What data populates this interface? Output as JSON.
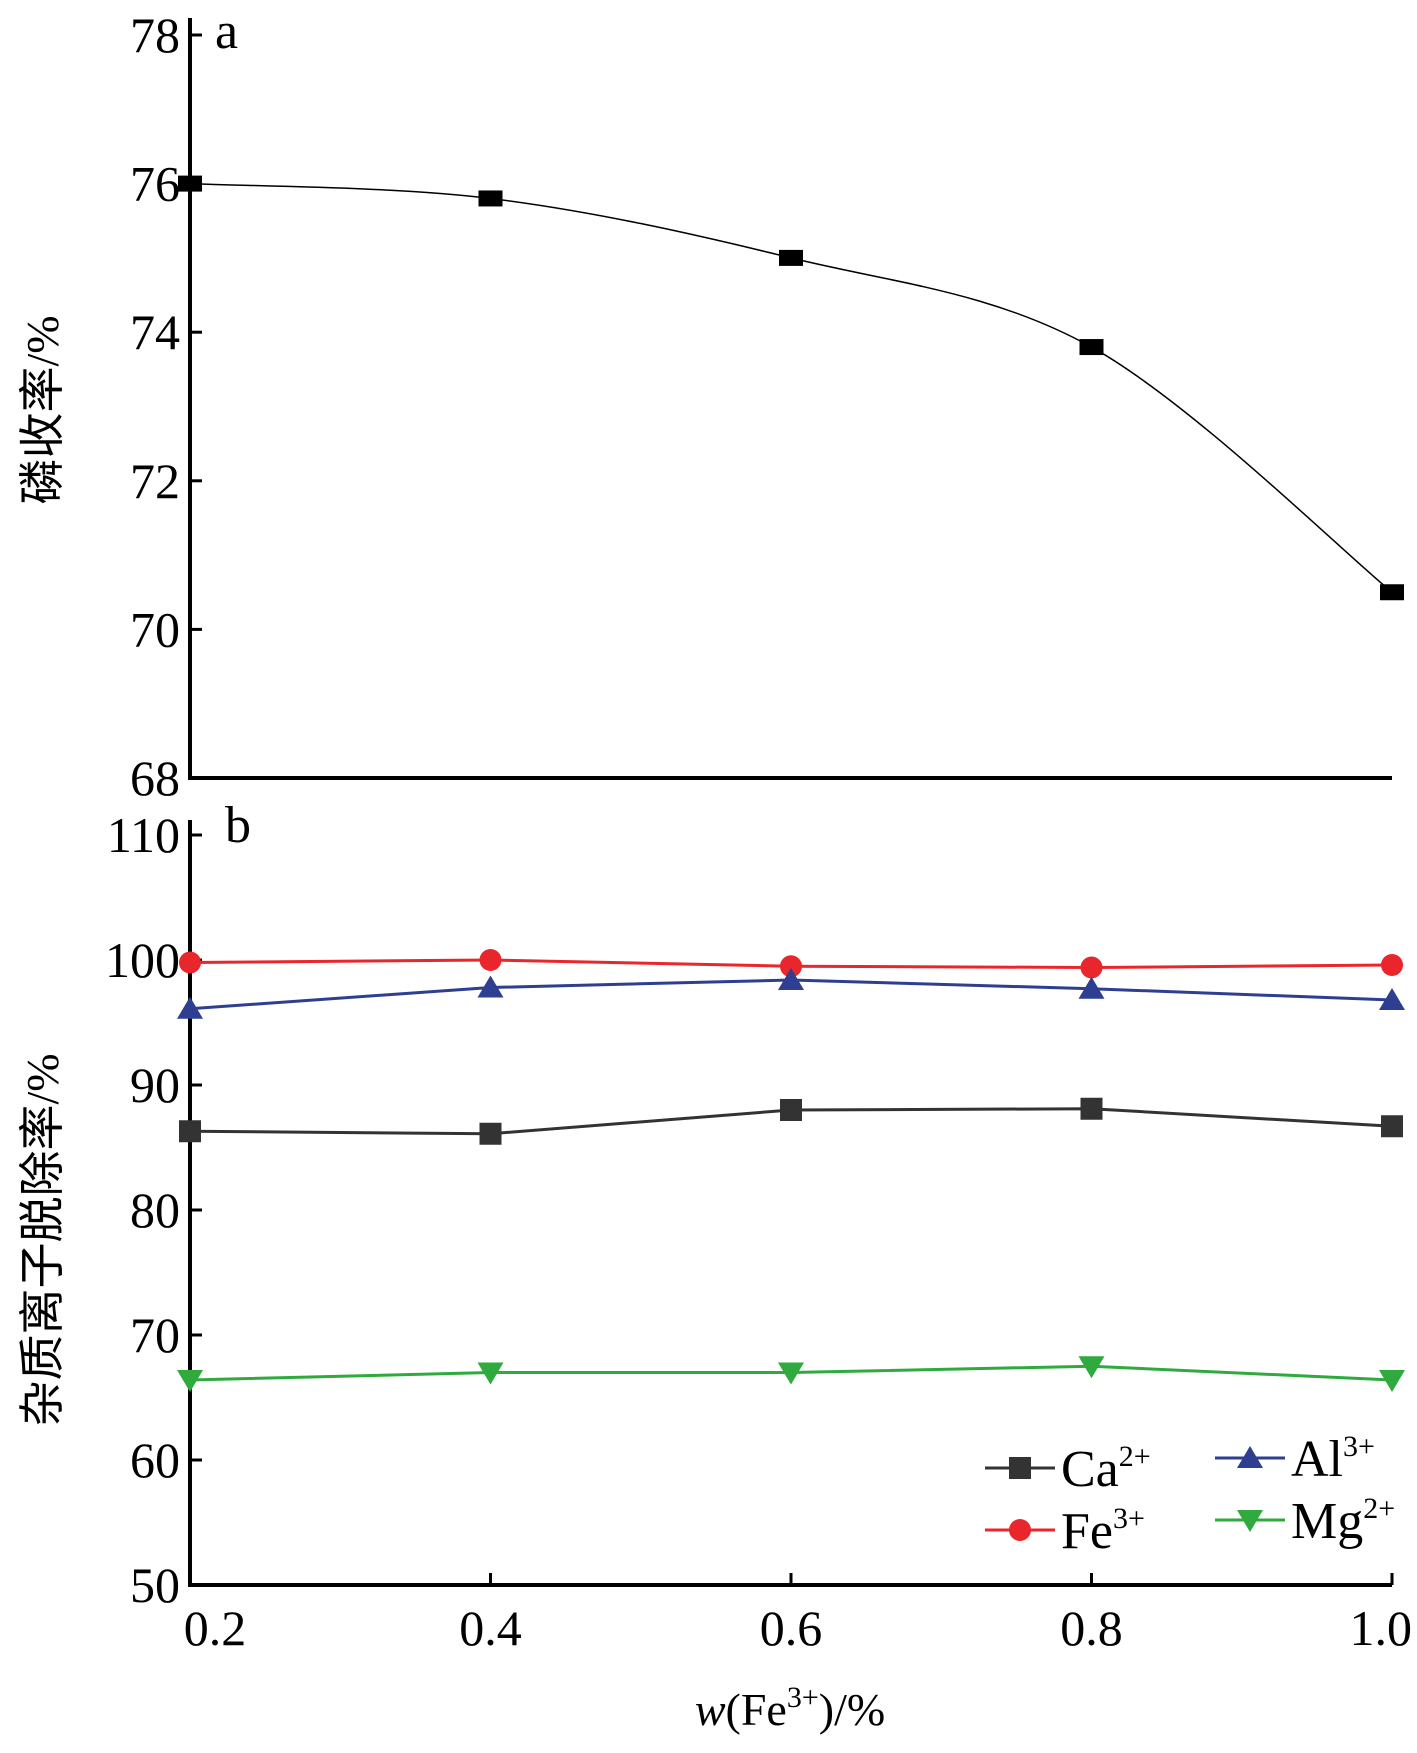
{
  "chart_data": [
    {
      "panel": "a",
      "type": "scatter",
      "ylabel": "磷收率/%",
      "xlabel": "",
      "ylim": [
        68,
        78
      ],
      "yticks": [
        68,
        70,
        72,
        74,
        76,
        78
      ],
      "xlim": [
        0.2,
        1.0
      ],
      "trendline": "smooth curve",
      "grid": false,
      "series": [
        {
          "name": "",
          "color": "#000000",
          "marker": "square",
          "x": [
            0.2,
            0.4,
            0.6,
            0.8,
            1.0
          ],
          "y": [
            76.0,
            75.8,
            75.0,
            73.8,
            70.5
          ]
        }
      ]
    },
    {
      "panel": "b",
      "type": "line",
      "ylabel": "杂质离子脱除率/%",
      "xlabel_italic": "w",
      "xlabel_rest": "(Fe",
      "xlabel_sup": "3+",
      "xlabel_tail": ")/%",
      "xlim": [
        0.2,
        1.0
      ],
      "xticks": [
        "0.2",
        "0.4",
        "0.6",
        "0.8",
        "1.0"
      ],
      "x": [
        0.2,
        0.4,
        0.6,
        0.8,
        1.0
      ],
      "ylim": [
        50,
        110
      ],
      "yticks": [
        50,
        60,
        70,
        80,
        90,
        100,
        110
      ],
      "grid": false,
      "legend": "bottom-right",
      "series": [
        {
          "name": "Ca",
          "sup": "2+",
          "color": "#333333",
          "marker": "square",
          "values": [
            86.3,
            86.1,
            88.0,
            88.1,
            86.7
          ]
        },
        {
          "name": "Fe",
          "sup": "3+",
          "color": "#e8262b",
          "marker": "circle",
          "values": [
            99.8,
            100.0,
            99.5,
            99.4,
            99.6
          ]
        },
        {
          "name": "Al",
          "sup": "3+",
          "color": "#2e3f91",
          "marker": "triangle-up",
          "values": [
            96.1,
            97.8,
            98.4,
            97.7,
            96.8
          ]
        },
        {
          "name": "Mg",
          "sup": "2+",
          "color": "#2eaa3e",
          "marker": "triangle-down",
          "values": [
            66.4,
            67.0,
            67.0,
            67.5,
            66.4
          ]
        }
      ]
    }
  ]
}
